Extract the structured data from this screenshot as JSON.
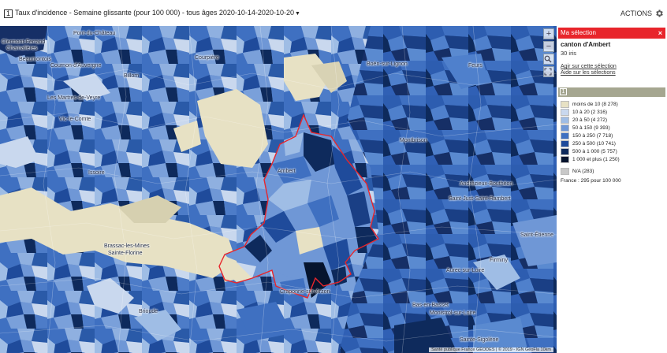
{
  "header": {
    "number": "1",
    "title": "Taux d'incidence - Semaine glissante (pour 100 000) - tous âges",
    "period": "2020-10-14-2020-10-20",
    "actions_label": "ACTIONS"
  },
  "map": {
    "places": [
      "Clermont-Ferrand",
      "Chamalières",
      "Pont-du-Château",
      "Beaumontois",
      "Cournon-d'Auvergne",
      "Billom",
      "Courpière",
      "Les Martres-de-Veyre",
      "Vic-le-Comte",
      "Issoire",
      "Brassac-les-Mines",
      "Sainte-Florine",
      "Brioude",
      "Ambert",
      "Craponne-sur-Arzon",
      "Boën-sur-Lignon",
      "Feurs",
      "Montbrison",
      "Andrézieux-Bouthéon",
      "Saint-Just-Saint-Rambert",
      "Saint-Étienne",
      "Firminy",
      "Aurec-sur-Loire",
      "Bas-en-Basset",
      "Monistrol-sur-Loire",
      "Sainte-Sigolène"
    ],
    "zoom_in": "+",
    "zoom_out": "−",
    "search_icon": "search-icon",
    "fullscreen_icon": "fullscreen-icon",
    "attribution": "Santé publique France GÉODES | © 2019 - IGN GéoFla  10km"
  },
  "selection": {
    "header": "Ma sélection",
    "close": "×",
    "name": "canton d'Ambert",
    "count": "30 iris",
    "link_act": "Agir sur cette sélection",
    "link_help": "Aide sur les sélections"
  },
  "legend": {
    "number": "1",
    "items": [
      {
        "label": "moins de 10 (8 278)",
        "color": "#e7e1c4"
      },
      {
        "label": "10 à 20 (2 316)",
        "color": "#c9d8ee"
      },
      {
        "label": "20 à 50 (4 272)",
        "color": "#9fbde5"
      },
      {
        "label": "50 à 150 (9 393)",
        "color": "#6f97d6"
      },
      {
        "label": "150 à 250 (7 718)",
        "color": "#3f70c1"
      },
      {
        "label": "250 à 500 (10 741)",
        "color": "#1f4b9b"
      },
      {
        "label": "500 à 1 000 (5 757)",
        "color": "#0e2a5c"
      },
      {
        "label": "1 000 et plus (1 250)",
        "color": "#06142e"
      }
    ],
    "na": {
      "label": "N/A (283)",
      "color": "#c8c8c8"
    },
    "france": "France : 295 pour 100 000"
  }
}
